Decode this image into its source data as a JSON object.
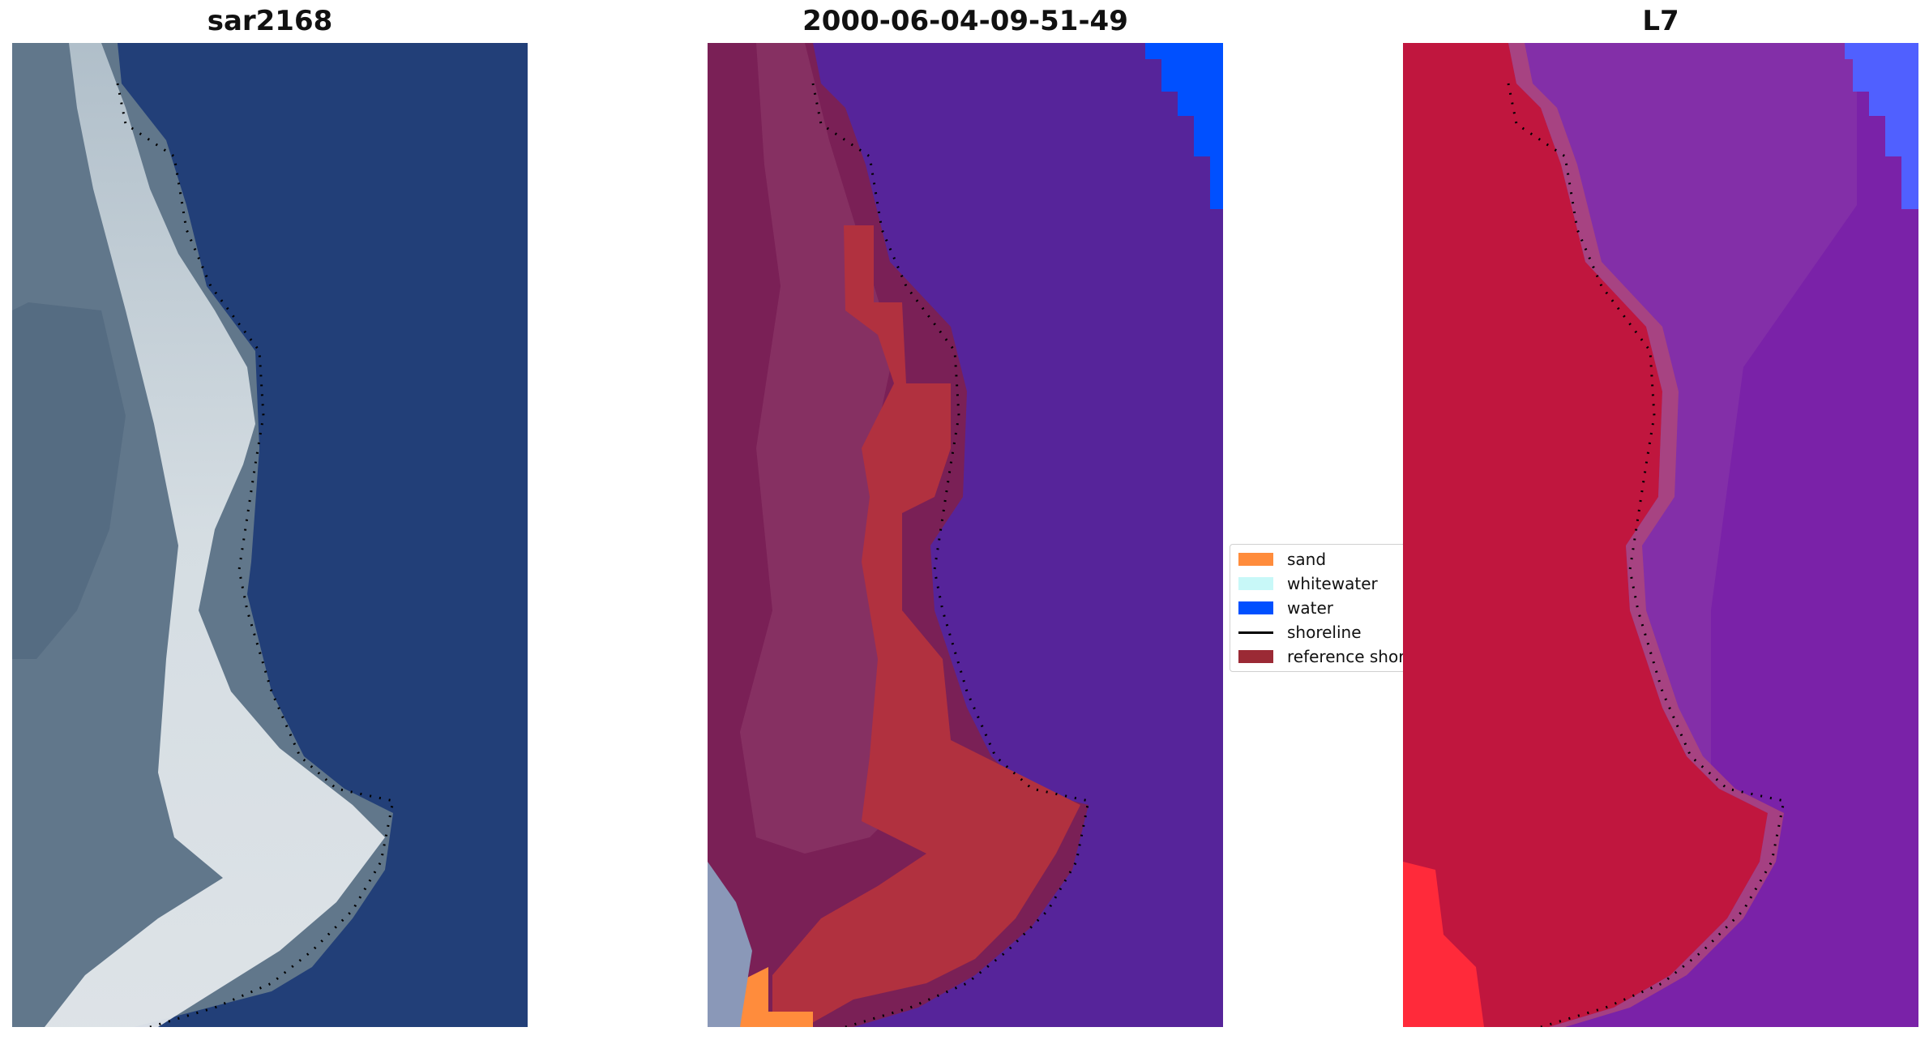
{
  "panels": [
    {
      "title": "sar2168"
    },
    {
      "title": "2000-06-04-09-51-49"
    },
    {
      "title": "L7"
    }
  ],
  "legend": {
    "entries": [
      {
        "label": "sand",
        "color": "#ff8c3c"
      },
      {
        "label": "whitewater",
        "color": "#c8f8f8"
      },
      {
        "label": "water",
        "color": "#0050ff"
      },
      {
        "label": "shoreline",
        "color": "#000000"
      },
      {
        "label": "reference shoreline",
        "color": "#9b2a35"
      }
    ]
  },
  "colors": {
    "rgb_water": "#213f79",
    "rgb_land_foam": "#c9d2d8",
    "rgb_land_veg": "#5f7488",
    "class_water_overlay": "#56249a",
    "class_land": "#7a2056",
    "class_reference": "#b1313f",
    "class_water_blue": "#0050ff",
    "class_sand": "#ff8c3c",
    "mndwi_land": "#c0163e",
    "mndwi_water": "#7820a8",
    "mndwi_high": "#5060ff"
  }
}
